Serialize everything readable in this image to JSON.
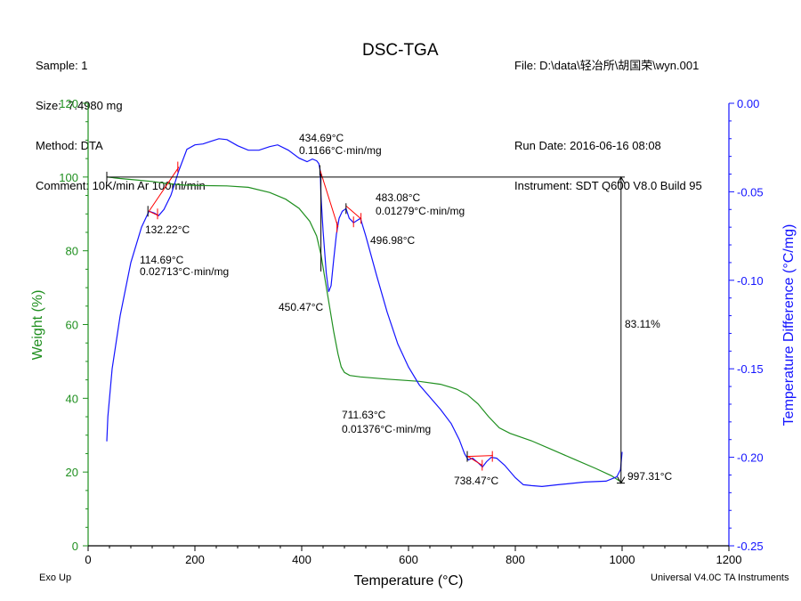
{
  "header": {
    "sample": "Sample: 1",
    "size": "Size:  7.4980 mg",
    "method": "Method: DTA",
    "comment": "Comment: 10K/min Ar 100ml/min",
    "file": "File: D:\\data\\轻冶所\\胡国荣\\wyn.001",
    "run_date": "Run Date: 2016-06-16 08:08",
    "instrument": "Instrument: SDT Q600 V8.0 Build 95"
  },
  "footer": {
    "left": "Exo Up",
    "right": "Universal V4.0C TA Instruments"
  },
  "chart_data": {
    "type": "line",
    "title": "DSC-TGA",
    "xlabel": "Temperature (°C)",
    "ylabel_left": "Weight (%)",
    "ylabel_right": "Temperature Difference (°C/mg)",
    "xlim": [
      0,
      1200
    ],
    "ylim_left": [
      0,
      120
    ],
    "ylim_right": [
      -0.25,
      0.0
    ],
    "x_ticks": [
      "0",
      "200",
      "400",
      "600",
      "800",
      "1000",
      "1200"
    ],
    "y_left_ticks": [
      "0",
      "20",
      "40",
      "60",
      "80",
      "100",
      "120"
    ],
    "y_right_ticks": [
      "-0.25",
      "-0.20",
      "-0.15",
      "-0.10",
      "-0.05",
      "0.00"
    ],
    "colors": {
      "weight": "#1f8f1f",
      "temp_diff": "#1414ff",
      "tangent": "#ff0000",
      "frame": "#000000"
    },
    "series": [
      {
        "axis": "left",
        "color": "#1f8f1f",
        "points": [
          [
            35,
            100
          ],
          [
            60,
            99.6
          ],
          [
            90,
            99.2
          ],
          [
            120,
            98.8
          ],
          [
            150,
            98.2
          ],
          [
            180,
            97.8
          ],
          [
            210,
            97.7
          ],
          [
            260,
            97.6
          ],
          [
            300,
            97.2
          ],
          [
            340,
            95.8
          ],
          [
            370,
            94
          ],
          [
            395,
            91.5
          ],
          [
            415,
            88
          ],
          [
            428,
            84
          ],
          [
            436,
            79
          ],
          [
            444,
            72
          ],
          [
            452,
            65
          ],
          [
            460,
            58
          ],
          [
            468,
            52
          ],
          [
            474,
            48.5
          ],
          [
            480,
            47
          ],
          [
            490,
            46.2
          ],
          [
            510,
            45.8
          ],
          [
            560,
            45.2
          ],
          [
            620,
            44.6
          ],
          [
            660,
            43.8
          ],
          [
            690,
            42.5
          ],
          [
            710,
            41
          ],
          [
            730,
            38.5
          ],
          [
            750,
            35
          ],
          [
            770,
            32
          ],
          [
            790,
            30.5
          ],
          [
            830,
            28.5
          ],
          [
            870,
            26
          ],
          [
            910,
            23.5
          ],
          [
            950,
            21
          ],
          [
            980,
            19
          ],
          [
            995,
            17.6
          ],
          [
            1000,
            17
          ]
        ]
      },
      {
        "axis": "right",
        "color": "#1414ff",
        "points": [
          [
            35,
            -0.191
          ],
          [
            37,
            -0.177
          ],
          [
            45,
            -0.15
          ],
          [
            60,
            -0.12
          ],
          [
            80,
            -0.09
          ],
          [
            100,
            -0.07
          ],
          [
            114,
            -0.061
          ],
          [
            124,
            -0.062
          ],
          [
            132,
            -0.0635
          ],
          [
            142,
            -0.06
          ],
          [
            155,
            -0.052
          ],
          [
            170,
            -0.038
          ],
          [
            185,
            -0.026
          ],
          [
            200,
            -0.0235
          ],
          [
            215,
            -0.023
          ],
          [
            230,
            -0.0215
          ],
          [
            245,
            -0.02
          ],
          [
            260,
            -0.0205
          ],
          [
            280,
            -0.024
          ],
          [
            300,
            -0.0265
          ],
          [
            320,
            -0.0265
          ],
          [
            340,
            -0.0245
          ],
          [
            355,
            -0.0235
          ],
          [
            375,
            -0.0265
          ],
          [
            395,
            -0.031
          ],
          [
            410,
            -0.033
          ],
          [
            420,
            -0.0315
          ],
          [
            428,
            -0.0325
          ],
          [
            432,
            -0.034
          ],
          [
            434.7,
            -0.038
          ],
          [
            436,
            -0.052
          ],
          [
            440,
            -0.072
          ],
          [
            446,
            -0.096
          ],
          [
            450.5,
            -0.1065
          ],
          [
            455,
            -0.103
          ],
          [
            460,
            -0.088
          ],
          [
            465,
            -0.074
          ],
          [
            470,
            -0.065
          ],
          [
            476,
            -0.061
          ],
          [
            483,
            -0.0595
          ],
          [
            489,
            -0.065
          ],
          [
            494,
            -0.0665
          ],
          [
            497,
            -0.0675
          ],
          [
            502,
            -0.0665
          ],
          [
            510,
            -0.065
          ],
          [
            520,
            -0.075
          ],
          [
            540,
            -0.097
          ],
          [
            560,
            -0.118
          ],
          [
            580,
            -0.136
          ],
          [
            600,
            -0.149
          ],
          [
            620,
            -0.159
          ],
          [
            640,
            -0.166
          ],
          [
            660,
            -0.173
          ],
          [
            680,
            -0.181
          ],
          [
            695,
            -0.19
          ],
          [
            705,
            -0.198
          ],
          [
            712,
            -0.2015
          ],
          [
            720,
            -0.2005
          ],
          [
            730,
            -0.203
          ],
          [
            738.5,
            -0.2055
          ],
          [
            746,
            -0.2025
          ],
          [
            755,
            -0.2
          ],
          [
            765,
            -0.2005
          ],
          [
            780,
            -0.2045
          ],
          [
            800,
            -0.2115
          ],
          [
            815,
            -0.2155
          ],
          [
            830,
            -0.216
          ],
          [
            850,
            -0.2165
          ],
          [
            880,
            -0.2155
          ],
          [
            930,
            -0.214
          ],
          [
            970,
            -0.2135
          ],
          [
            990,
            -0.211
          ],
          [
            997,
            -0.207
          ],
          [
            1000,
            -0.197
          ]
        ]
      }
    ],
    "annotations": [
      {
        "label": "132.22°C",
        "x": 132.22
      },
      {
        "label": "114.69°C",
        "label2": "0.02713°C·min/mg",
        "x": 114.69
      },
      {
        "label": "434.69°C",
        "label2": "0.1166°C·min/mg",
        "x": 434.69
      },
      {
        "label": "450.47°C",
        "x": 450.47
      },
      {
        "label": "483.08°C",
        "label2": "0.01279°C·min/mg",
        "x": 483.08
      },
      {
        "label": "496.98°C",
        "x": 496.98
      },
      {
        "label": "711.63°C",
        "label2": "0.01376°C·min/mg",
        "x": 711.63
      },
      {
        "label": "738.47°C",
        "x": 738.47
      },
      {
        "label": "997.31°C",
        "x": 997.31
      },
      {
        "label": "83.11%",
        "weight_loss_percent": 83.11
      }
    ]
  }
}
